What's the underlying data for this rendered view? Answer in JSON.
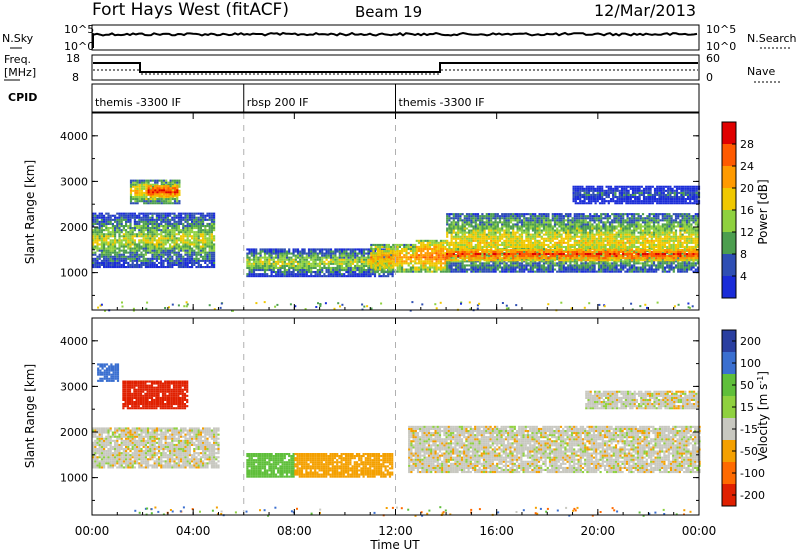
{
  "header": {
    "station": "Fort Hays West (fitACF)",
    "beam": "Beam 19",
    "date": "12/Mar/2013"
  },
  "noise_panel": {
    "left_label": "N.Sky",
    "right_label": "N.Search",
    "left_ticks": [
      "10^5",
      "10^0"
    ],
    "right_ticks": [
      "10^5",
      "10^0"
    ]
  },
  "freq_panel": {
    "left_label_1": "Freq.",
    "left_label_2": "[MHz]",
    "right_label": "Nave",
    "left_ticks": [
      "18",
      "8"
    ],
    "right_ticks": [
      "60",
      "0"
    ]
  },
  "cpid_panel": {
    "label": "CPID",
    "segments": [
      {
        "name": "themis -3300 IF",
        "start_hour": 0,
        "end_hour": 6
      },
      {
        "name": "rbsp 200 IF",
        "start_hour": 6,
        "end_hour": 12
      },
      {
        "name": "themis -3300 IF",
        "start_hour": 12,
        "end_hour": 24
      }
    ]
  },
  "power_panel": {
    "ylabel": "Slant Range [km]",
    "yticks": [
      "4000",
      "3000",
      "2000",
      "1000"
    ],
    "colorbar_label": "Power [dB]",
    "colorbar_ticks": [
      "28",
      "24",
      "20",
      "16",
      "12",
      "8",
      "4"
    ]
  },
  "velocity_panel": {
    "ylabel": "Slant Range [km]",
    "yticks": [
      "4000",
      "3000",
      "2000",
      "1000"
    ],
    "colorbar_label": "Velocity [m s",
    "colorbar_unit_sup": "-1",
    "colorbar_label_end": "]",
    "colorbar_ticks": [
      "200",
      "100",
      "50",
      "15",
      "-15",
      "-50",
      "-100",
      "-200"
    ]
  },
  "xaxis": {
    "label": "Time UT",
    "ticks": [
      "00:00",
      "04:00",
      "08:00",
      "12:00",
      "16:00",
      "20:00",
      "00:00"
    ]
  },
  "colors": {
    "power_scale": [
      "#e00000",
      "#ff5a00",
      "#ff9a00",
      "#f0c800",
      "#8fd13f",
      "#4c9e4f",
      "#2f4fb4",
      "#1a2cd8"
    ],
    "velocity_scale": [
      "#2a3fa0",
      "#3a6fd0",
      "#5fbf3a",
      "#8fd13f",
      "#c8c8c0",
      "#f4a000",
      "#ff6a00",
      "#e02000"
    ],
    "cpid_divider": "#b0b0b0"
  },
  "chart_data": {
    "type": "heatmap",
    "x_range_hours": [
      0,
      24
    ],
    "y_range_km": [
      180,
      4500
    ],
    "power_features": [
      {
        "t0": 0.0,
        "t1": 4.8,
        "r0": 1100,
        "r1": 2300,
        "level_db": 14
      },
      {
        "t0": 1.5,
        "t1": 3.5,
        "r0": 2500,
        "r1": 3000,
        "level_db": 18
      },
      {
        "t0": 2.2,
        "t1": 3.4,
        "r0": 2650,
        "r1": 2900,
        "level_db": 28
      },
      {
        "t0": 6.1,
        "t1": 11.9,
        "r0": 900,
        "r1": 1500,
        "level_db": 14
      },
      {
        "t0": 11.0,
        "t1": 12.8,
        "r0": 1000,
        "r1": 1600,
        "level_db": 20
      },
      {
        "t0": 12.8,
        "t1": 14.0,
        "r0": 1000,
        "r1": 1700,
        "level_db": 22
      },
      {
        "t0": 14.0,
        "t1": 24.0,
        "r0": 1000,
        "r1": 2300,
        "level_db": 16
      },
      {
        "t0": 14.0,
        "t1": 24.0,
        "r0": 1250,
        "r1": 1500,
        "level_db": 26
      },
      {
        "t0": 19.0,
        "t1": 24.0,
        "r0": 2500,
        "r1": 2900,
        "level_db": 8
      }
    ],
    "velocity_features": [
      {
        "t0": 0.0,
        "t1": 5.0,
        "r0": 1200,
        "r1": 2100,
        "velocity": 0
      },
      {
        "t0": 1.2,
        "t1": 3.8,
        "r0": 2500,
        "r1": 3100,
        "velocity": -200
      },
      {
        "t0": 0.2,
        "t1": 1.0,
        "r0": 3100,
        "r1": 3500,
        "velocity": 100
      },
      {
        "t0": 6.1,
        "t1": 8.0,
        "r0": 1000,
        "r1": 1500,
        "velocity": 50
      },
      {
        "t0": 8.0,
        "t1": 11.9,
        "r0": 1000,
        "r1": 1500,
        "velocity": -50
      },
      {
        "t0": 12.5,
        "t1": 24.0,
        "r0": 1100,
        "r1": 2100,
        "velocity": 0
      },
      {
        "t0": 19.5,
        "t1": 24.0,
        "r0": 2500,
        "r1": 2900,
        "velocity": 0
      }
    ]
  }
}
